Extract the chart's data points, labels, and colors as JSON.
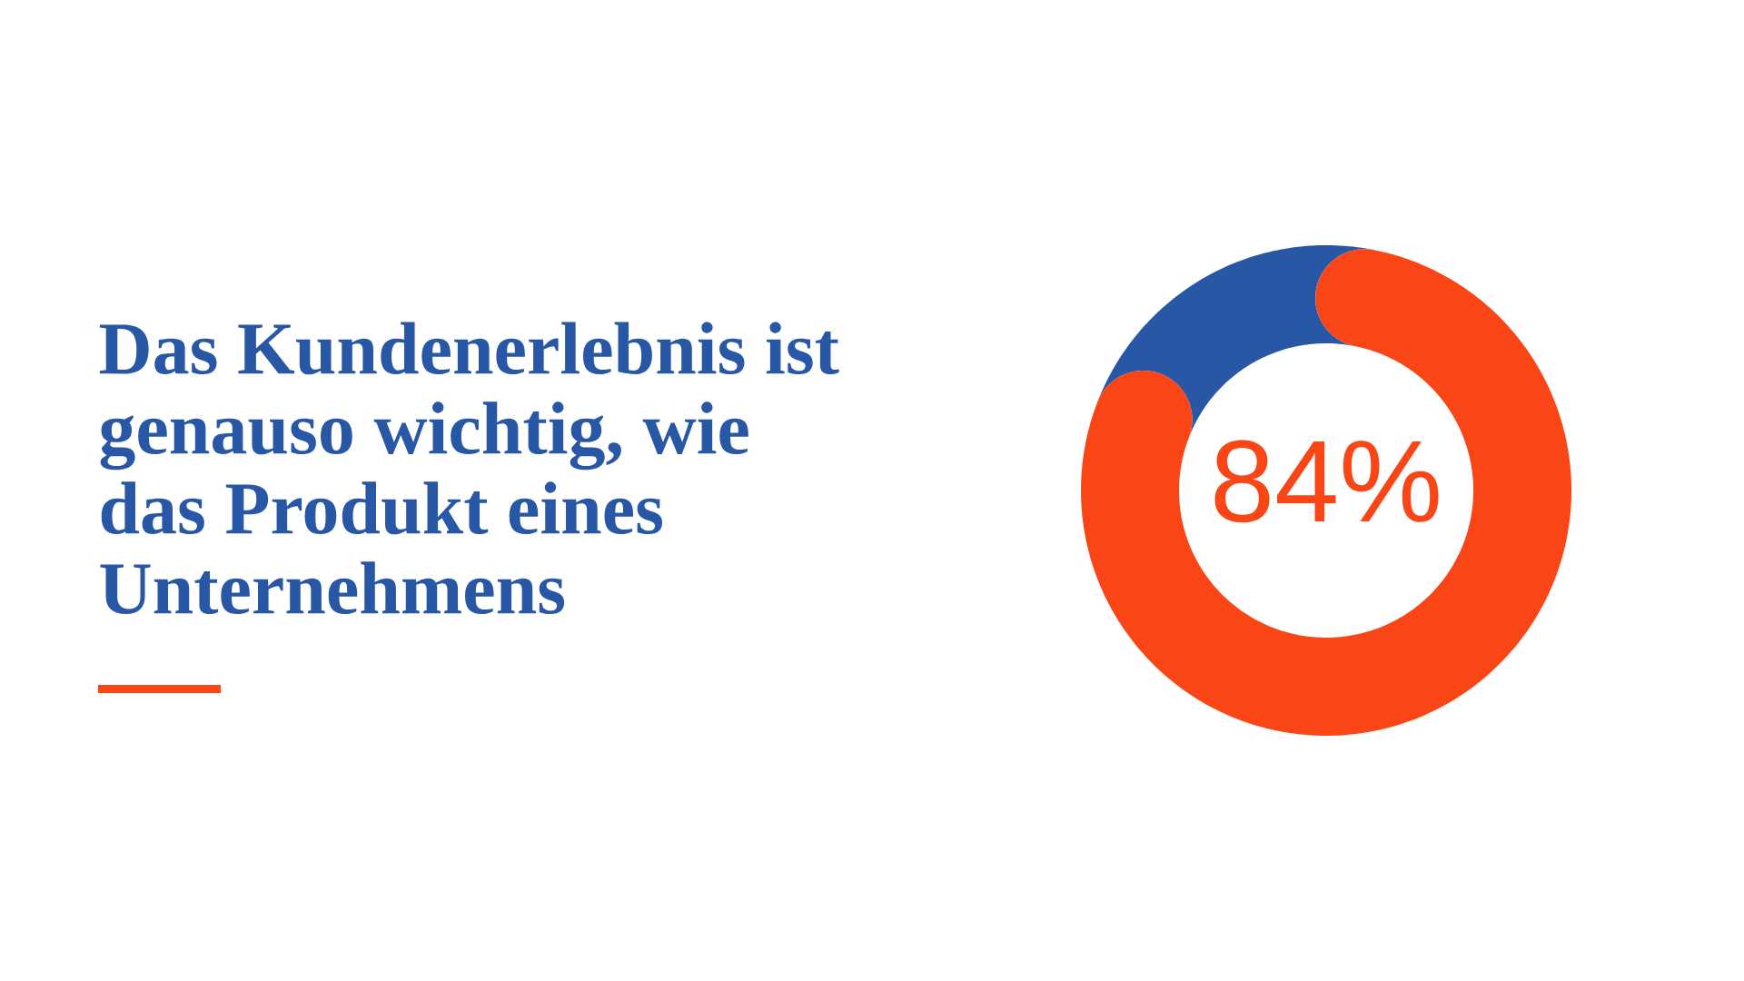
{
  "chart_data": {
    "type": "donut",
    "title": "Das Kundenerlebnis ist genauso wichtig, wie das Produkt eines Unternehmens",
    "categories": [
      null,
      null
    ],
    "values": [
      84,
      16
    ],
    "colors": [
      "#fa4616",
      "#2857a6"
    ],
    "value_labels": [
      "84%",
      null
    ]
  }
}
